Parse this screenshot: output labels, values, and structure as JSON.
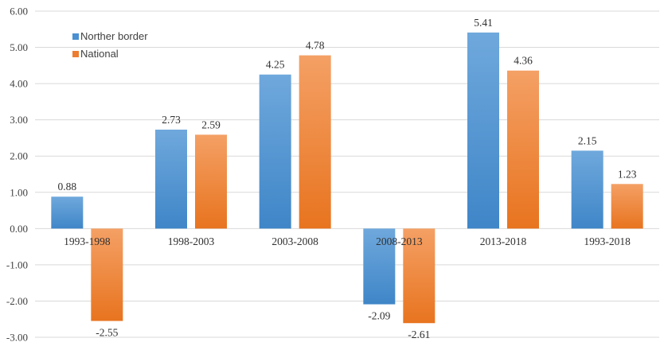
{
  "chart_data": {
    "type": "bar",
    "title": "",
    "xlabel": "",
    "ylabel": "",
    "ylim": [
      -3,
      6
    ],
    "yticks": [
      "6.00",
      "5.00",
      "4.00",
      "3.00",
      "2.00",
      "1.00",
      "0.00",
      "-1.00",
      "-2.00",
      "-3.00"
    ],
    "ytick_values": [
      6,
      5,
      4,
      3,
      2,
      1,
      0,
      -1,
      -2,
      -3
    ],
    "categories": [
      "1993-1998",
      "1998-2003",
      "2003-2008",
      "2008-2013",
      "2013-2018",
      "1993-2018"
    ],
    "series": [
      {
        "name": "Norther border",
        "values": [
          0.88,
          2.73,
          4.25,
          -2.09,
          5.41,
          2.15
        ],
        "labels": [
          "0.88",
          "2.73",
          "4.25",
          "-2.09",
          "5.41",
          "2.15"
        ],
        "color_top": "#6fa8dc",
        "color_bottom": "#3f86c8"
      },
      {
        "name": "National",
        "values": [
          -2.55,
          2.59,
          4.78,
          -2.61,
          4.36,
          1.23
        ],
        "labels": [
          "-2.55",
          "2.59",
          "4.78",
          "-2.61",
          "4.36",
          "1.23"
        ],
        "color_top": "#f4a065",
        "color_bottom": "#e8741f"
      }
    ],
    "legend_position": "top-left",
    "gridlines": true,
    "grid_color": "#d9d9d9"
  }
}
